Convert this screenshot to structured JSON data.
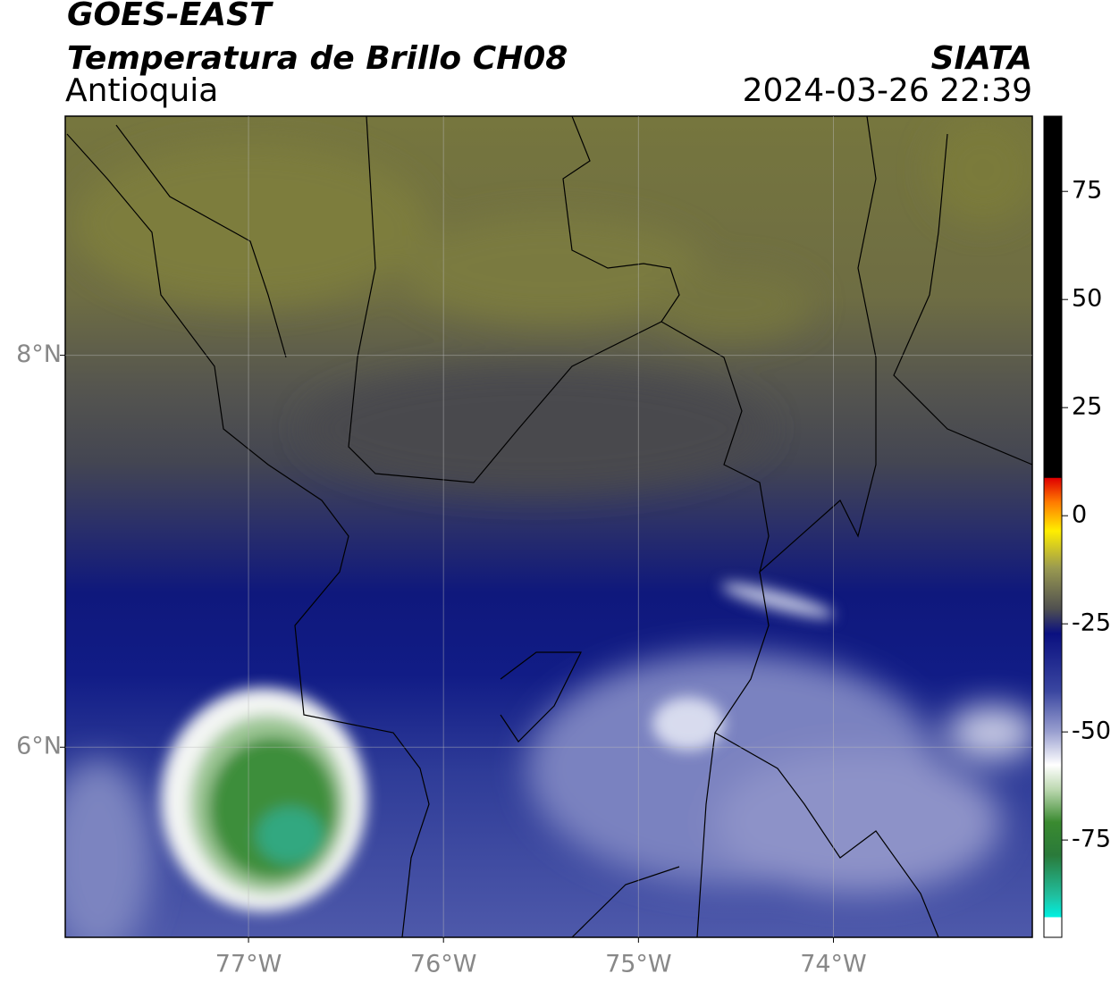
{
  "header": {
    "title": "GOES-EAST",
    "subtitle": "Temperatura de Brillo CH08",
    "region": "Antioquia",
    "source": "SIATA",
    "timestamp": "2024-03-26 22:39"
  },
  "map": {
    "xlim": [
      -77.94,
      -72.98
    ],
    "ylim": [
      5.03,
      9.22
    ],
    "xticks": [
      {
        "value": -77,
        "label": "77°W"
      },
      {
        "value": -76,
        "label": "76°W"
      },
      {
        "value": -75,
        "label": "75°W"
      },
      {
        "value": -74,
        "label": "74°W"
      }
    ],
    "yticks": [
      {
        "value": 8,
        "label": "8°N"
      },
      {
        "value": 6,
        "label": "6°N"
      }
    ],
    "grid": true
  },
  "colorbar": {
    "lim": [
      -97.5,
      92.4
    ],
    "ticks": [
      75,
      50,
      25,
      0,
      -25,
      -50,
      -75
    ]
  }
}
